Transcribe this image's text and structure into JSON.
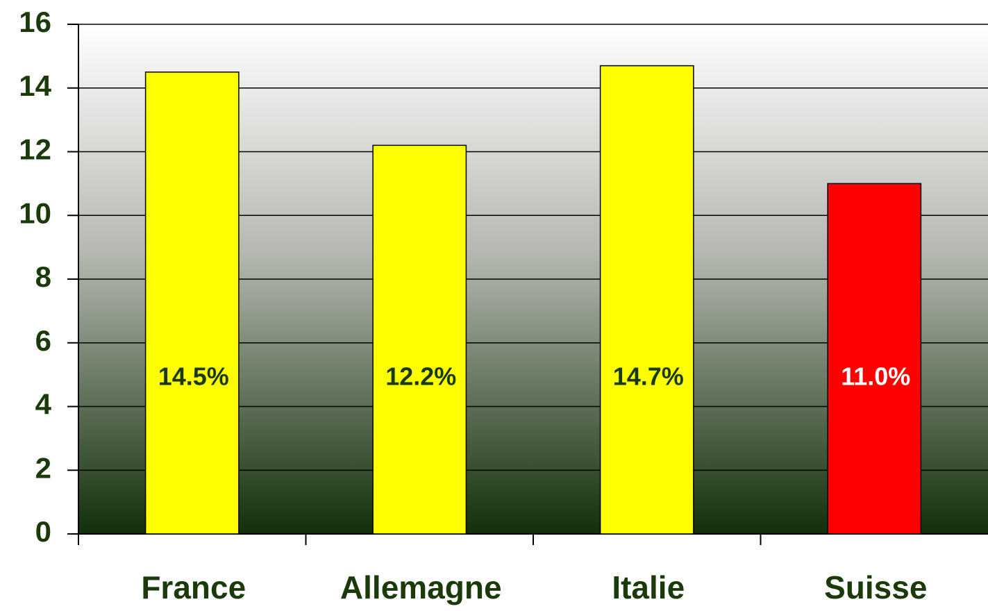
{
  "chart_data": {
    "type": "bar",
    "categories": [
      "France",
      "Allemagne",
      "Italie",
      "Suisse"
    ],
    "values": [
      14.5,
      12.2,
      14.7,
      11.0
    ],
    "value_labels": [
      "14.5%",
      "12.2%",
      "14.7%",
      "11.0%"
    ],
    "colors": [
      "#ffff00",
      "#ffff00",
      "#ffff00",
      "#ff0000"
    ],
    "label_colors": [
      "#1a3a0a",
      "#1a3a0a",
      "#1a3a0a",
      "#ffffff"
    ],
    "ylim": [
      0,
      16
    ],
    "yticks": [
      0,
      2,
      4,
      6,
      8,
      10,
      12,
      14,
      16
    ],
    "grid": true
  }
}
